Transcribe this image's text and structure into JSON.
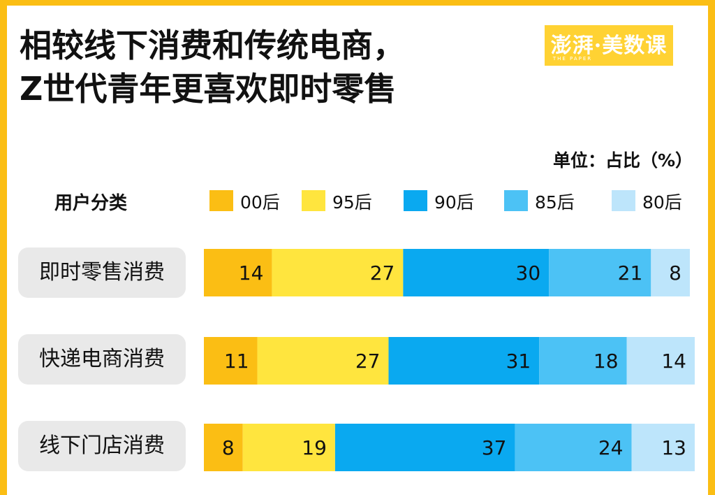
{
  "title_lines": [
    "相较线下消费和传统电商，",
    "Z世代青年更喜欢即时零售"
  ],
  "logo": {
    "main": "澎湃·美数课",
    "sub": "THE PAPER"
  },
  "unit": "单位：占比（%）",
  "colors": {
    "background": "#FBBE14",
    "00后": "#FBBE14",
    "95后": "#FFE53E",
    "90后": "#0AA9F0",
    "85后": "#4CC2F5",
    "80后": "#BDE5FB"
  },
  "chart_data": {
    "type": "bar",
    "orientation": "horizontal",
    "stacked": true,
    "legend_title": "用户分类",
    "categories": [
      "即时零售消费",
      "快递电商消费",
      "线下门店消费"
    ],
    "series": [
      {
        "name": "00后",
        "values": [
          14,
          11,
          8
        ]
      },
      {
        "name": "95后",
        "values": [
          27,
          27,
          19
        ]
      },
      {
        "name": "90后",
        "values": [
          30,
          31,
          37
        ]
      },
      {
        "name": "85后",
        "values": [
          21,
          18,
          24
        ]
      },
      {
        "name": "80后",
        "values": [
          8,
          14,
          13
        ]
      }
    ],
    "xlim": [
      0,
      100
    ],
    "grid": false,
    "legend_position": "top"
  }
}
